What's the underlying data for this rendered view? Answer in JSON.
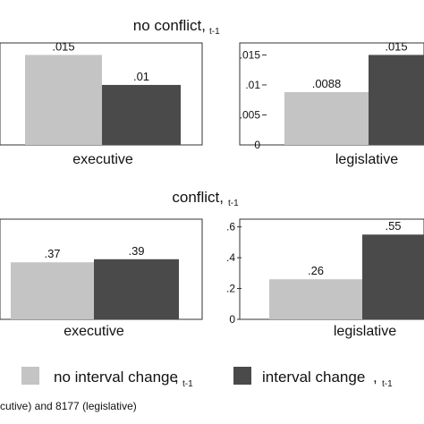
{
  "legend": [
    {
      "label": "no interval change",
      "subscript": "t-1",
      "color": "#c4c4c4"
    },
    {
      "label": "interval change",
      "subscript": "t-1",
      "color": "#4a4a4a"
    }
  ],
  "note": "cutive) and 8177 (legislative)",
  "chart_data": [
    {
      "type": "bar",
      "title": "no conflict,",
      "title_subscript": "t-1",
      "category": "executive",
      "series": [
        {
          "name": "no interval change, t-1",
          "value": 0.015,
          "label": ".015"
        },
        {
          "name": "interval change, t-1",
          "value": 0.01,
          "label": ".01"
        }
      ],
      "ylim": [
        0,
        0.017
      ],
      "yticks": [],
      "ytick_labels": []
    },
    {
      "type": "bar",
      "title": "no conflict,",
      "title_subscript": "t-1",
      "category": "legislative",
      "series": [
        {
          "name": "no interval change, t-1",
          "value": 0.0088,
          "label": ".0088"
        },
        {
          "name": "interval change, t-1",
          "value": 0.015,
          "label": ".015"
        }
      ],
      "ylim": [
        0,
        0.017
      ],
      "yticks": [
        0,
        0.005,
        0.01,
        0.015
      ],
      "ytick_labels": [
        "0",
        ".005",
        ".01",
        ".015"
      ]
    },
    {
      "type": "bar",
      "title": "conflict,",
      "title_subscript": "t-1",
      "category": "executive",
      "series": [
        {
          "name": "no interval change, t-1",
          "value": 0.37,
          "label": ".37"
        },
        {
          "name": "interval change, t-1",
          "value": 0.39,
          "label": ".39"
        }
      ],
      "ylim": [
        0,
        0.65
      ],
      "yticks": [],
      "ytick_labels": []
    },
    {
      "type": "bar",
      "title": "conflict,",
      "title_subscript": "t-1",
      "category": "legislative",
      "series": [
        {
          "name": "no interval change, t-1",
          "value": 0.26,
          "label": ".26"
        },
        {
          "name": "interval change, t-1",
          "value": 0.55,
          "label": ".55"
        }
      ],
      "ylim": [
        0,
        0.65
      ],
      "yticks": [
        0,
        0.2,
        0.4,
        0.6
      ],
      "ytick_labels": [
        "0",
        ".2",
        ".4",
        ".6"
      ]
    }
  ]
}
